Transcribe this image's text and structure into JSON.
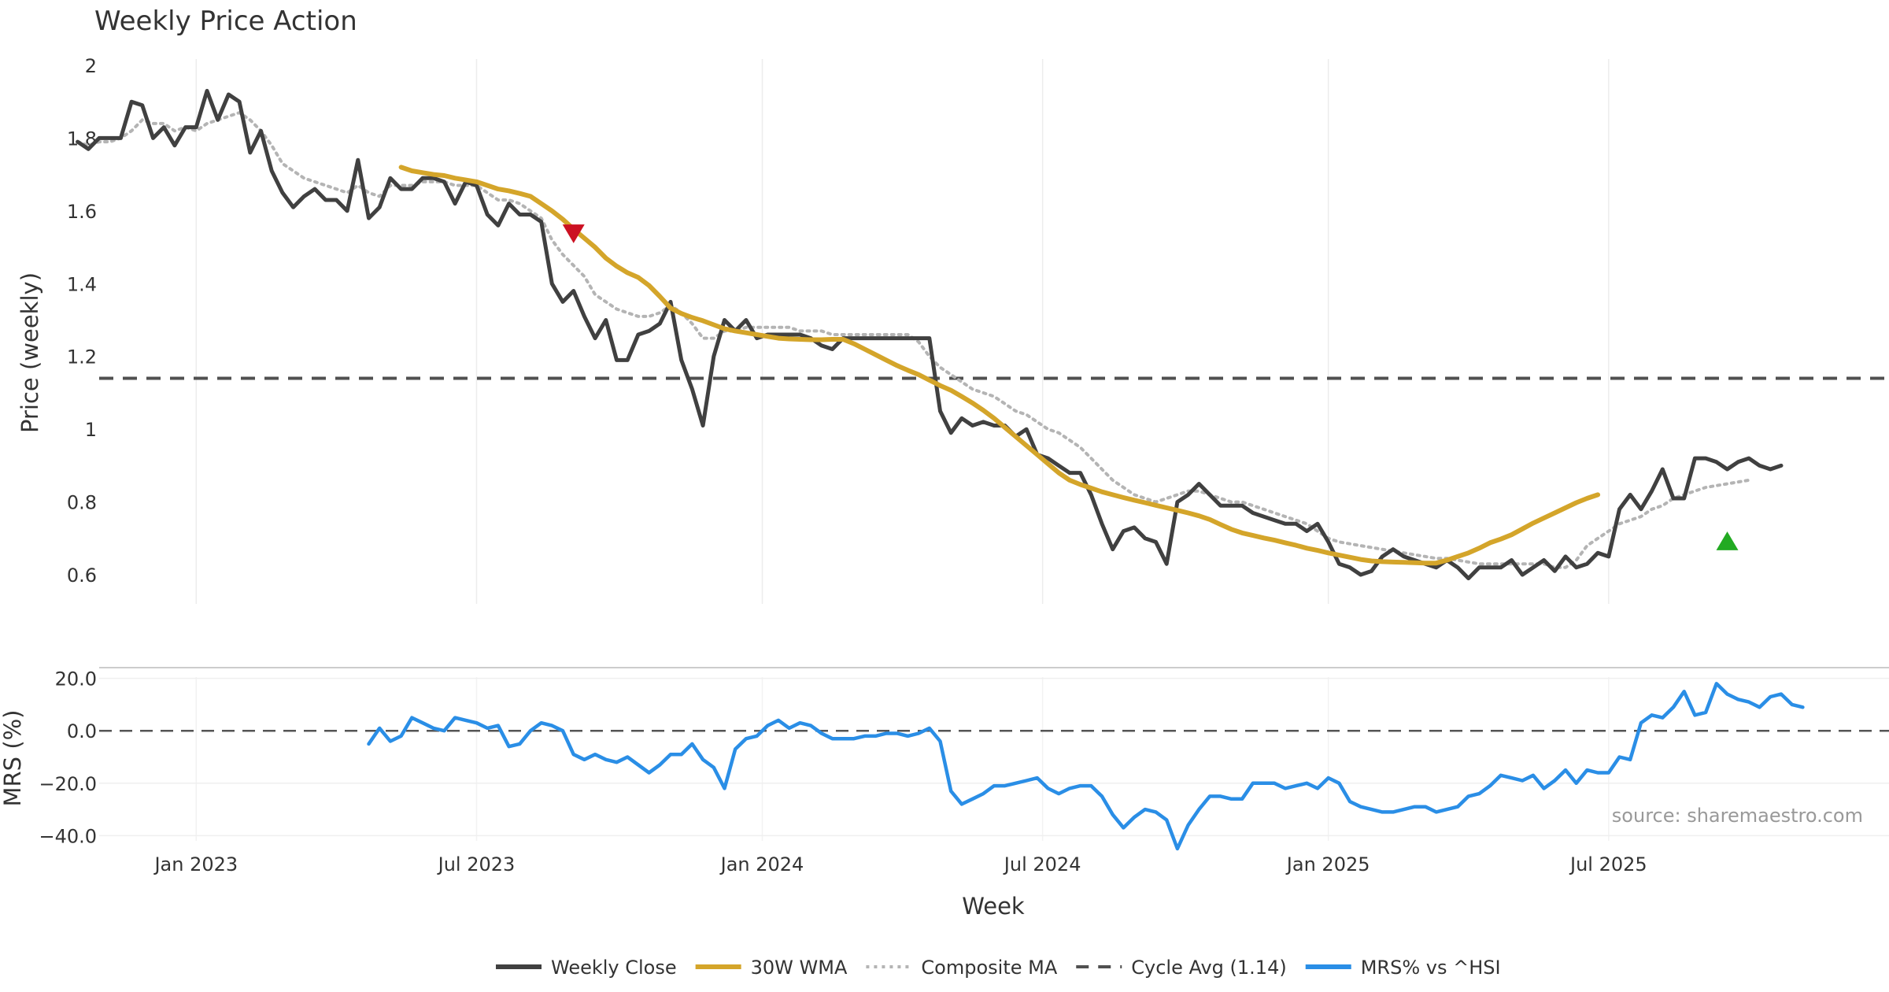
{
  "chart_data": {
    "type": "line",
    "title": "Weekly Price Action",
    "xlabel": "Week",
    "source": "source: sharemaestro.com",
    "x_ticks": [
      {
        "label": "Jan 2023",
        "week": 11
      },
      {
        "label": "Jul 2023",
        "week": 37
      },
      {
        "label": "Jan 2024",
        "week": 63.5
      },
      {
        "label": "Jul 2024",
        "week": 89.5
      },
      {
        "label": "Jan 2025",
        "week": 116
      },
      {
        "label": "Jul 2025",
        "week": 142
      }
    ],
    "x_range": [
      2,
      168
    ],
    "price_panel": {
      "ylabel": "Price (weekly)",
      "ylim": [
        0.52,
        2.0
      ],
      "yticks": [
        0.6,
        0.8,
        1,
        1.2,
        1.4,
        1.6,
        1.8,
        2
      ],
      "ytick_labels": [
        "0.6",
        "0.8",
        "1",
        "1.2",
        "1.4",
        "1.6",
        "1.8",
        "2"
      ],
      "series": [
        {
          "name": "Weekly Close",
          "color": "#404040",
          "style": "solid",
          "values": [
            1.79,
            1.77,
            1.8,
            1.8,
            1.8,
            1.9,
            1.89,
            1.8,
            1.83,
            1.78,
            1.83,
            1.83,
            1.93,
            1.85,
            1.92,
            1.9,
            1.76,
            1.82,
            1.71,
            1.65,
            1.61,
            1.64,
            1.66,
            1.63,
            1.63,
            1.6,
            1.74,
            1.58,
            1.61,
            1.69,
            1.66,
            1.66,
            1.69,
            1.69,
            1.68,
            1.62,
            1.68,
            1.67,
            1.59,
            1.56,
            1.62,
            1.59,
            1.59,
            1.57,
            1.4,
            1.35,
            1.38,
            1.31,
            1.25,
            1.3,
            1.19,
            1.19,
            1.26,
            1.27,
            1.29,
            1.35,
            1.19,
            1.11,
            1.01,
            1.2,
            1.3,
            1.27,
            1.3,
            1.25,
            1.26,
            1.26,
            1.26,
            1.26,
            1.25,
            1.23,
            1.22,
            1.25,
            1.25,
            1.25,
            1.25,
            1.25,
            1.25,
            1.25,
            1.25,
            1.25,
            1.05,
            0.99,
            1.03,
            1.01,
            1.02,
            1.01,
            1.01,
            0.98,
            1.0,
            0.93,
            0.92,
            0.9,
            0.88,
            0.88,
            0.82,
            0.74,
            0.67,
            0.72,
            0.73,
            0.7,
            0.69,
            0.63,
            0.8,
            0.82,
            0.85,
            0.82,
            0.79,
            0.79,
            0.79,
            0.77,
            0.76,
            0.75,
            0.74,
            0.74,
            0.72,
            0.74,
            0.69,
            0.63,
            0.62,
            0.6,
            0.61,
            0.65,
            0.67,
            0.65,
            0.64,
            0.63,
            0.62,
            0.64,
            0.62,
            0.59,
            0.62,
            0.62,
            0.62,
            0.64,
            0.6,
            0.62,
            0.64,
            0.61,
            0.65,
            0.62,
            0.63,
            0.66,
            0.65,
            0.78,
            0.82,
            0.78,
            0.83,
            0.89,
            0.81,
            0.81,
            0.92,
            0.92,
            0.91,
            0.89,
            0.91,
            0.92,
            0.9,
            0.89,
            0.9
          ]
        },
        {
          "name": "30W WMA",
          "color": "#d4a52a",
          "style": "solid",
          "start_week": 30,
          "values": [
            1.72,
            1.71,
            1.705,
            1.7,
            1.697,
            1.69,
            1.685,
            1.68,
            1.67,
            1.66,
            1.655,
            1.648,
            1.64,
            1.62,
            1.6,
            1.577,
            1.55,
            1.525,
            1.5,
            1.47,
            1.448,
            1.43,
            1.417,
            1.395,
            1.365,
            1.333,
            1.318,
            1.307,
            1.298,
            1.287,
            1.276,
            1.27,
            1.265,
            1.26,
            1.255,
            1.25,
            1.248,
            1.247,
            1.246,
            1.246,
            1.247,
            1.247,
            1.235,
            1.22,
            1.205,
            1.19,
            1.175,
            1.162,
            1.15,
            1.135,
            1.12,
            1.107,
            1.09,
            1.072,
            1.052,
            1.03,
            1.005,
            0.98,
            0.955,
            0.93,
            0.905,
            0.88,
            0.86,
            0.848,
            0.838,
            0.828,
            0.82,
            0.812,
            0.805,
            0.798,
            0.791,
            0.784,
            0.777,
            0.77,
            0.762,
            0.752,
            0.738,
            0.725,
            0.715,
            0.708,
            0.701,
            0.695,
            0.688,
            0.681,
            0.673,
            0.667,
            0.66,
            0.654,
            0.648,
            0.642,
            0.638,
            0.636,
            0.635,
            0.634,
            0.633,
            0.632,
            0.632,
            0.64,
            0.65,
            0.66,
            0.673,
            0.688,
            0.698,
            0.71,
            0.726,
            0.742,
            0.756,
            0.77,
            0.784,
            0.798,
            0.81,
            0.82
          ]
        },
        {
          "name": "Composite MA",
          "color": "#b4b4b4",
          "style": "dotted",
          "values": [
            1.79,
            1.78,
            1.79,
            1.79,
            1.8,
            1.82,
            1.85,
            1.84,
            1.84,
            1.82,
            1.83,
            1.82,
            1.84,
            1.85,
            1.86,
            1.87,
            1.85,
            1.82,
            1.78,
            1.73,
            1.71,
            1.69,
            1.68,
            1.67,
            1.66,
            1.65,
            1.67,
            1.65,
            1.64,
            1.67,
            1.67,
            1.67,
            1.68,
            1.68,
            1.68,
            1.67,
            1.67,
            1.67,
            1.65,
            1.63,
            1.63,
            1.62,
            1.6,
            1.58,
            1.52,
            1.48,
            1.45,
            1.42,
            1.37,
            1.35,
            1.33,
            1.32,
            1.31,
            1.31,
            1.32,
            1.34,
            1.32,
            1.29,
            1.25,
            1.25,
            1.27,
            1.27,
            1.28,
            1.28,
            1.28,
            1.28,
            1.28,
            1.27,
            1.27,
            1.27,
            1.26,
            1.26,
            1.26,
            1.26,
            1.26,
            1.26,
            1.26,
            1.26,
            1.24,
            1.2,
            1.17,
            1.15,
            1.13,
            1.11,
            1.1,
            1.09,
            1.07,
            1.05,
            1.04,
            1.02,
            1.0,
            0.99,
            0.97,
            0.95,
            0.92,
            0.89,
            0.86,
            0.84,
            0.82,
            0.81,
            0.8,
            0.81,
            0.82,
            0.83,
            0.83,
            0.82,
            0.81,
            0.8,
            0.8,
            0.79,
            0.78,
            0.77,
            0.76,
            0.75,
            0.74,
            0.72,
            0.7,
            0.69,
            0.685,
            0.68,
            0.675,
            0.67,
            0.665,
            0.66,
            0.655,
            0.65,
            0.645,
            0.645,
            0.64,
            0.635,
            0.63,
            0.63,
            0.63,
            0.63,
            0.63,
            0.63,
            0.63,
            0.62,
            0.62,
            0.64,
            0.68,
            0.7,
            0.72,
            0.74,
            0.75,
            0.76,
            0.78,
            0.79,
            0.81,
            0.82,
            0.83,
            0.84,
            0.845,
            0.85,
            0.855,
            0.86
          ]
        },
        {
          "name": "Cycle Avg (1.14)",
          "color": "#505050",
          "style": "dashed",
          "value": 1.14
        }
      ],
      "markers": [
        {
          "type": "sell",
          "week": 46,
          "value": 1.54,
          "color": "#cc1122"
        },
        {
          "type": "buy",
          "week": 153,
          "value": 0.69,
          "color": "#22aa22"
        }
      ]
    },
    "mrs_panel": {
      "ylabel": "MRS (%)",
      "ylim": [
        -42,
        22
      ],
      "yticks": [
        -40,
        -20,
        0,
        20
      ],
      "ytick_labels": [
        "−40.0",
        "−20.0",
        "0.0",
        "20.0"
      ],
      "zero_line": 0,
      "series": [
        {
          "name": "MRS% vs ^HSI",
          "color": "#2a8ee6",
          "start_week": 27,
          "values": [
            -5,
            1,
            -4,
            -2,
            5,
            3,
            1,
            0,
            5,
            4,
            3,
            1,
            2,
            -6,
            -5,
            0,
            3,
            2,
            0,
            -9,
            -11,
            -9,
            -11,
            -12,
            -10,
            -13,
            -16,
            -13,
            -9,
            -9,
            -5,
            -11,
            -14,
            -22,
            -7,
            -3,
            -2,
            2,
            4,
            1,
            3,
            2,
            -1,
            -3,
            -3,
            -3,
            -2,
            -2,
            -1,
            -1,
            -2,
            -1,
            1,
            -4,
            -23,
            -28,
            -26,
            -24,
            -21,
            -21,
            -20,
            -19,
            -18,
            -22,
            -24,
            -22,
            -21,
            -21,
            -25,
            -32,
            -37,
            -33,
            -30,
            -31,
            -34,
            -45,
            -36,
            -30,
            -25,
            -25,
            -26,
            -26,
            -20,
            -20,
            -20,
            -22,
            -21,
            -20,
            -22,
            -18,
            -20,
            -27,
            -29,
            -30,
            -31,
            -31,
            -30,
            -29,
            -29,
            -31,
            -30,
            -29,
            -25,
            -24,
            -21,
            -17,
            -18,
            -19,
            -17,
            -22,
            -19,
            -15,
            -20,
            -15,
            -16,
            -16,
            -10,
            -11,
            3,
            6,
            5,
            9,
            15,
            6,
            7,
            18,
            14,
            12,
            11,
            9,
            13,
            14,
            10,
            9
          ]
        }
      ]
    },
    "legend": {
      "position": "bottom-center",
      "items": [
        {
          "label": "Weekly Close",
          "color": "#404040",
          "style": "solid"
        },
        {
          "label": "30W WMA",
          "color": "#d4a52a",
          "style": "solid"
        },
        {
          "label": "Composite MA",
          "color": "#b4b4b4",
          "style": "dotted"
        },
        {
          "label": "Cycle Avg (1.14)",
          "color": "#505050",
          "style": "dashed"
        },
        {
          "label": "MRS% vs ^HSI",
          "color": "#2a8ee6",
          "style": "solid"
        }
      ]
    }
  }
}
